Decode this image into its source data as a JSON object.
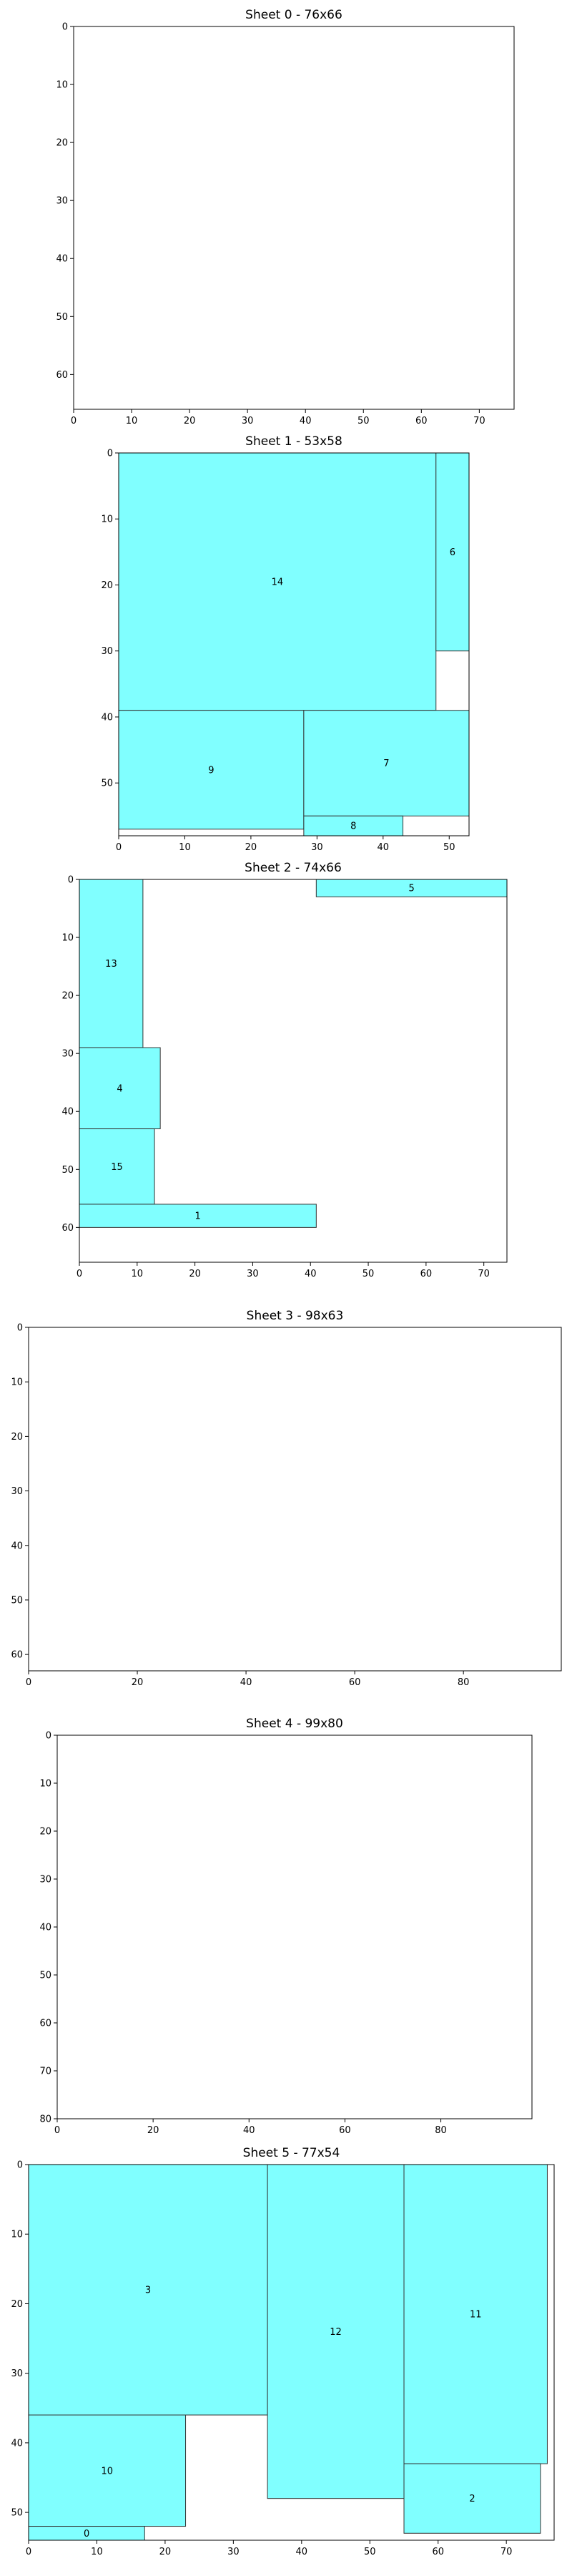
{
  "chart_data": [
    {
      "type": "rectangle-packing",
      "title": "Sheet 0 - 76x66",
      "xlim": [
        0,
        76
      ],
      "ylim": [
        66,
        0
      ],
      "y_inverted": true,
      "xticks": [
        0,
        10,
        20,
        30,
        40,
        50,
        60,
        70
      ],
      "yticks": [
        0,
        10,
        20,
        30,
        40,
        50,
        60
      ],
      "piece_color": "#80ffff",
      "pieces": []
    },
    {
      "type": "rectangle-packing",
      "title": "Sheet 1 - 53x58",
      "xlim": [
        0,
        53
      ],
      "ylim": [
        58,
        0
      ],
      "y_inverted": true,
      "xticks": [
        0,
        10,
        20,
        30,
        40,
        50
      ],
      "yticks": [
        0,
        10,
        20,
        30,
        40,
        50
      ],
      "piece_color": "#80ffff",
      "pieces": [
        {
          "id": "14",
          "x": 0,
          "y": 0,
          "w": 48,
          "h": 39
        },
        {
          "id": "6",
          "x": 48,
          "y": 0,
          "w": 5,
          "h": 30
        },
        {
          "id": "9",
          "x": 0,
          "y": 39,
          "w": 28,
          "h": 18
        },
        {
          "id": "7",
          "x": 28,
          "y": 39,
          "w": 25,
          "h": 16
        },
        {
          "id": "8",
          "x": 28,
          "y": 55,
          "w": 15,
          "h": 3
        }
      ]
    },
    {
      "type": "rectangle-packing",
      "title": "Sheet 2 - 74x66",
      "xlim": [
        0,
        74
      ],
      "ylim": [
        66,
        0
      ],
      "y_inverted": true,
      "xticks": [
        0,
        10,
        20,
        30,
        40,
        50,
        60,
        70
      ],
      "yticks": [
        0,
        10,
        20,
        30,
        40,
        50,
        60
      ],
      "piece_color": "#80ffff",
      "pieces": [
        {
          "id": "13",
          "x": 0,
          "y": 0,
          "w": 11,
          "h": 29
        },
        {
          "id": "5",
          "x": 41,
          "y": 0,
          "w": 33,
          "h": 3
        },
        {
          "id": "4",
          "x": 0,
          "y": 29,
          "w": 14,
          "h": 14
        },
        {
          "id": "15",
          "x": 0,
          "y": 43,
          "w": 13,
          "h": 13
        },
        {
          "id": "1",
          "x": 0,
          "y": 56,
          "w": 41,
          "h": 4
        }
      ]
    },
    {
      "type": "rectangle-packing",
      "title": "Sheet 3 - 98x63",
      "xlim": [
        0,
        98
      ],
      "ylim": [
        63,
        0
      ],
      "y_inverted": true,
      "xticks": [
        0,
        20,
        40,
        60,
        80
      ],
      "yticks": [
        0,
        10,
        20,
        30,
        40,
        50,
        60
      ],
      "piece_color": "#80ffff",
      "pieces": []
    },
    {
      "type": "rectangle-packing",
      "title": "Sheet 4 - 99x80",
      "xlim": [
        0,
        99
      ],
      "ylim": [
        80,
        0
      ],
      "y_inverted": true,
      "xticks": [
        0,
        20,
        40,
        60,
        80
      ],
      "yticks": [
        0,
        10,
        20,
        30,
        40,
        50,
        60,
        70,
        80
      ],
      "piece_color": "#80ffff",
      "pieces": []
    },
    {
      "type": "rectangle-packing",
      "title": "Sheet 5 - 77x54",
      "xlim": [
        0,
        77
      ],
      "ylim": [
        54,
        0
      ],
      "y_inverted": true,
      "xticks": [
        0,
        10,
        20,
        30,
        40,
        50,
        60,
        70
      ],
      "yticks": [
        0,
        10,
        20,
        30,
        40,
        50
      ],
      "piece_color": "#80ffff",
      "pieces": [
        {
          "id": "3",
          "x": 0,
          "y": 0,
          "w": 35,
          "h": 36
        },
        {
          "id": "12",
          "x": 35,
          "y": 0,
          "w": 20,
          "h": 48
        },
        {
          "id": "11",
          "x": 55,
          "y": 0,
          "w": 21,
          "h": 43
        },
        {
          "id": "10",
          "x": 0,
          "y": 36,
          "w": 23,
          "h": 16
        },
        {
          "id": "2",
          "x": 55,
          "y": 43,
          "w": 20,
          "h": 10
        },
        {
          "id": "0",
          "x": 0,
          "y": 52,
          "w": 17,
          "h": 2
        }
      ]
    }
  ]
}
